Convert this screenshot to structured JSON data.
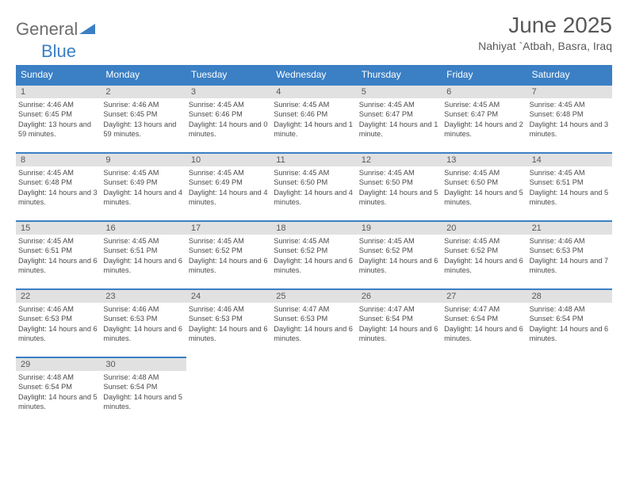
{
  "logo": {
    "textA": "General",
    "textB": "Blue"
  },
  "title": "June 2025",
  "location": "Nahiyat `Atbah, Basra, Iraq",
  "colors": {
    "header_bg": "#3b7fc4",
    "header_text": "#ffffff",
    "daynum_bg": "#e1e1e1",
    "body_text": "#4a4a4a",
    "title_text": "#585858"
  },
  "weekdays": [
    "Sunday",
    "Monday",
    "Tuesday",
    "Wednesday",
    "Thursday",
    "Friday",
    "Saturday"
  ],
  "days": [
    {
      "n": 1,
      "sunrise": "4:46 AM",
      "sunset": "6:45 PM",
      "daylight": "13 hours and 59 minutes."
    },
    {
      "n": 2,
      "sunrise": "4:46 AM",
      "sunset": "6:45 PM",
      "daylight": "13 hours and 59 minutes."
    },
    {
      "n": 3,
      "sunrise": "4:45 AM",
      "sunset": "6:46 PM",
      "daylight": "14 hours and 0 minutes."
    },
    {
      "n": 4,
      "sunrise": "4:45 AM",
      "sunset": "6:46 PM",
      "daylight": "14 hours and 1 minute."
    },
    {
      "n": 5,
      "sunrise": "4:45 AM",
      "sunset": "6:47 PM",
      "daylight": "14 hours and 1 minute."
    },
    {
      "n": 6,
      "sunrise": "4:45 AM",
      "sunset": "6:47 PM",
      "daylight": "14 hours and 2 minutes."
    },
    {
      "n": 7,
      "sunrise": "4:45 AM",
      "sunset": "6:48 PM",
      "daylight": "14 hours and 3 minutes."
    },
    {
      "n": 8,
      "sunrise": "4:45 AM",
      "sunset": "6:48 PM",
      "daylight": "14 hours and 3 minutes."
    },
    {
      "n": 9,
      "sunrise": "4:45 AM",
      "sunset": "6:49 PM",
      "daylight": "14 hours and 4 minutes."
    },
    {
      "n": 10,
      "sunrise": "4:45 AM",
      "sunset": "6:49 PM",
      "daylight": "14 hours and 4 minutes."
    },
    {
      "n": 11,
      "sunrise": "4:45 AM",
      "sunset": "6:50 PM",
      "daylight": "14 hours and 4 minutes."
    },
    {
      "n": 12,
      "sunrise": "4:45 AM",
      "sunset": "6:50 PM",
      "daylight": "14 hours and 5 minutes."
    },
    {
      "n": 13,
      "sunrise": "4:45 AM",
      "sunset": "6:50 PM",
      "daylight": "14 hours and 5 minutes."
    },
    {
      "n": 14,
      "sunrise": "4:45 AM",
      "sunset": "6:51 PM",
      "daylight": "14 hours and 5 minutes."
    },
    {
      "n": 15,
      "sunrise": "4:45 AM",
      "sunset": "6:51 PM",
      "daylight": "14 hours and 6 minutes."
    },
    {
      "n": 16,
      "sunrise": "4:45 AM",
      "sunset": "6:51 PM",
      "daylight": "14 hours and 6 minutes."
    },
    {
      "n": 17,
      "sunrise": "4:45 AM",
      "sunset": "6:52 PM",
      "daylight": "14 hours and 6 minutes."
    },
    {
      "n": 18,
      "sunrise": "4:45 AM",
      "sunset": "6:52 PM",
      "daylight": "14 hours and 6 minutes."
    },
    {
      "n": 19,
      "sunrise": "4:45 AM",
      "sunset": "6:52 PM",
      "daylight": "14 hours and 6 minutes."
    },
    {
      "n": 20,
      "sunrise": "4:45 AM",
      "sunset": "6:52 PM",
      "daylight": "14 hours and 6 minutes."
    },
    {
      "n": 21,
      "sunrise": "4:46 AM",
      "sunset": "6:53 PM",
      "daylight": "14 hours and 7 minutes."
    },
    {
      "n": 22,
      "sunrise": "4:46 AM",
      "sunset": "6:53 PM",
      "daylight": "14 hours and 6 minutes."
    },
    {
      "n": 23,
      "sunrise": "4:46 AM",
      "sunset": "6:53 PM",
      "daylight": "14 hours and 6 minutes."
    },
    {
      "n": 24,
      "sunrise": "4:46 AM",
      "sunset": "6:53 PM",
      "daylight": "14 hours and 6 minutes."
    },
    {
      "n": 25,
      "sunrise": "4:47 AM",
      "sunset": "6:53 PM",
      "daylight": "14 hours and 6 minutes."
    },
    {
      "n": 26,
      "sunrise": "4:47 AM",
      "sunset": "6:54 PM",
      "daylight": "14 hours and 6 minutes."
    },
    {
      "n": 27,
      "sunrise": "4:47 AM",
      "sunset": "6:54 PM",
      "daylight": "14 hours and 6 minutes."
    },
    {
      "n": 28,
      "sunrise": "4:48 AM",
      "sunset": "6:54 PM",
      "daylight": "14 hours and 6 minutes."
    },
    {
      "n": 29,
      "sunrise": "4:48 AM",
      "sunset": "6:54 PM",
      "daylight": "14 hours and 5 minutes."
    },
    {
      "n": 30,
      "sunrise": "4:48 AM",
      "sunset": "6:54 PM",
      "daylight": "14 hours and 5 minutes."
    }
  ],
  "labels": {
    "sunrise": "Sunrise:",
    "sunset": "Sunset:",
    "daylight": "Daylight:"
  }
}
